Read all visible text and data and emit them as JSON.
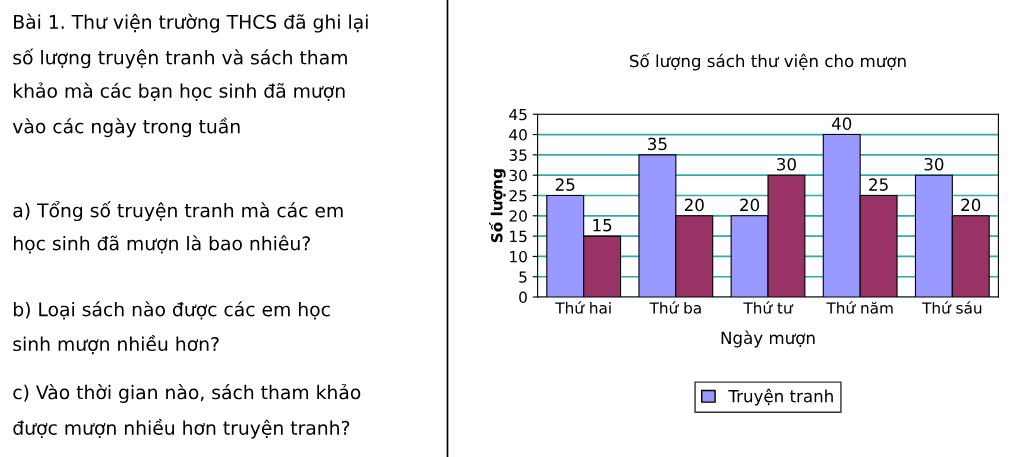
{
  "chart_data": {
    "type": "bar",
    "title": "Số lượng sách thư viện cho mượn",
    "xlabel": "Ngày mượn",
    "ylabel": "Số lượng",
    "annotations": [
      "Bài 1. Thư viện trường THCS đã ghi lại\nsố lượng truyện tranh và sách tham\nkhảo mà các bạn học sinh đã mượn\nvào các ngày trong tuần",
      "a) Tổng số truyện tranh mà các em\nhọc sinh đã mượn là bao nhiêu?",
      "b) Loại sách nào được các em học\nsinh mượn nhiều hơn?",
      "c) Vào thời gian nào, sách tham khảo\nđược mượn nhiều hơn truyện tranh?"
    ],
    "categories": [
      "Thứ hai",
      "Thứ ba",
      "Thứ tư",
      "Thứ năm",
      "Thứ sáu"
    ],
    "series": [
      {
        "name": "Truyện tranh",
        "color": "#9999ff",
        "values": [
          25,
          35,
          20,
          40,
          30
        ]
      },
      {
        "color": "#993366",
        "values": [
          15,
          20,
          30,
          25,
          20
        ]
      }
    ],
    "ylim": [
      0,
      45
    ],
    "yticks": [
      0,
      5,
      10,
      15,
      20,
      25,
      30,
      35,
      40,
      45
    ],
    "grid": "y",
    "legend": "bottom",
    "data_labels": true
  }
}
